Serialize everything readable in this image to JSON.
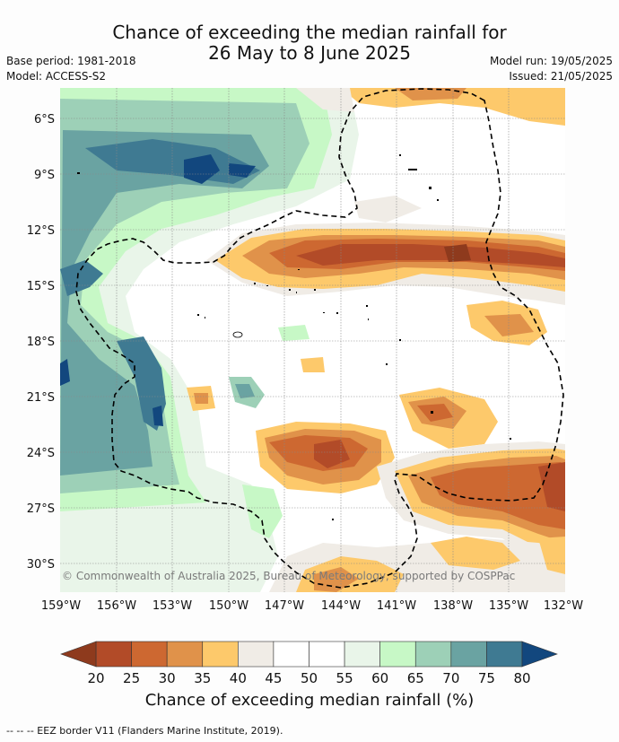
{
  "title_line1": "Chance of exceeding the median rainfall for",
  "title_line2": "26 May to 8 June 2025",
  "base_period": "Base period: 1981-2018",
  "model": "Model: ACCESS-S2",
  "model_run": "Model run: 19/05/2025",
  "issued": "Issued: 21/05/2025",
  "copyright": "© Commonwealth of Australia 2025, Bureau of Meteorology, supported by COSPPac",
  "lat_labels": [
    "6°S",
    "9°S",
    "12°S",
    "15°S",
    "18°S",
    "21°S",
    "24°S",
    "27°S",
    "30°S"
  ],
  "lon_labels": [
    "159°W",
    "156°W",
    "153°W",
    "150°W",
    "147°W",
    "144°W",
    "141°W",
    "138°W",
    "135°W",
    "132°W"
  ],
  "colorbar": {
    "ticks": [
      "20",
      "25",
      "30",
      "35",
      "40",
      "45",
      "50",
      "55",
      "60",
      "65",
      "70",
      "75",
      "80"
    ],
    "colors": [
      "#b24b28",
      "#cd6831",
      "#e0924a",
      "#fdc96b",
      "#f0ece6",
      "#ffffff",
      "#ffffff",
      "#e9f5e9",
      "#c7f8c6",
      "#9dd0b7",
      "#6aa3a2",
      "#3f7a92"
    ],
    "under_color": "#8e3a1d",
    "over_color": "#12477e",
    "title": "Chance of exceeding median rainfall (%)"
  },
  "legend_footer": "-- -- -- EEZ border V11 (Flanders Marine Institute, 2019)."
}
